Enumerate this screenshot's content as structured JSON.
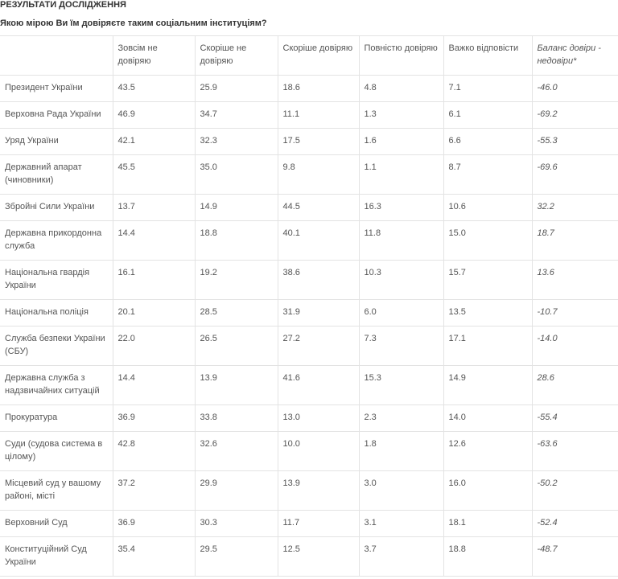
{
  "header": {
    "title": "РЕЗУЛЬТАТИ ДОСЛІДЖЕННЯ",
    "question": "Якою мірою Ви їм довіряєте таким соціальним інституціям?"
  },
  "table": {
    "columns": [
      "",
      "Зовсім не довіряю",
      "Скоріше  не довіряю",
      "Скоріше довіряю",
      "Повністю довіряю",
      "Важко відповісти",
      "Баланс довіри - недовіри*"
    ],
    "rows": [
      [
        "Президент України",
        "43.5",
        "25.9",
        "18.6",
        "4.8",
        "7.1",
        "-46.0"
      ],
      [
        "Верховна Рада України",
        "46.9",
        "34.7",
        "11.1",
        "1.3",
        "6.1",
        "-69.2"
      ],
      [
        "Уряд України",
        "42.1",
        "32.3",
        "17.5",
        "1.6",
        "6.6",
        "-55.3"
      ],
      [
        "Державний апарат (чиновники)",
        "45.5",
        "35.0",
        "9.8",
        "1.1",
        "8.7",
        "-69.6"
      ],
      [
        "Збройні Сили України",
        "13.7",
        "14.9",
        "44.5",
        "16.3",
        "10.6",
        "32.2"
      ],
      [
        "Державна прикордонна служба",
        "14.4",
        "18.8",
        "40.1",
        "11.8",
        "15.0",
        "18.7"
      ],
      [
        "Національна гвардія України",
        "16.1",
        "19.2",
        "38.6",
        "10.3",
        "15.7",
        "13.6"
      ],
      [
        "Національна поліція",
        "20.1",
        "28.5",
        "31.9",
        "6.0",
        "13.5",
        "-10.7"
      ],
      [
        "Служба безпеки України (СБУ)",
        "22.0",
        "26.5",
        "27.2",
        "7.3",
        "17.1",
        "-14.0"
      ],
      [
        "Державна служба з надзвичайних ситуацій",
        "14.4",
        "13.9",
        "41.6",
        "15.3",
        "14.9",
        "28.6"
      ],
      [
        "Прокуратура",
        "36.9",
        "33.8",
        "13.0",
        "2.3",
        "14.0",
        "-55.4"
      ],
      [
        "Суди (судова система в цілому)",
        "42.8",
        "32.6",
        "10.0",
        "1.8",
        "12.6",
        "-63.6"
      ],
      [
        "Місцевий суд у вашому районі, місті",
        "37.2",
        "29.9",
        "13.9",
        "3.0",
        "16.0",
        "-50.2"
      ],
      [
        "Верховний Суд",
        "36.9",
        "30.3",
        "11.7",
        "3.1",
        "18.1",
        "-52.4"
      ],
      [
        "Конституційний Суд України",
        "35.4",
        "29.5",
        "12.5",
        "3.7",
        "18.8",
        "-48.7"
      ]
    ]
  }
}
